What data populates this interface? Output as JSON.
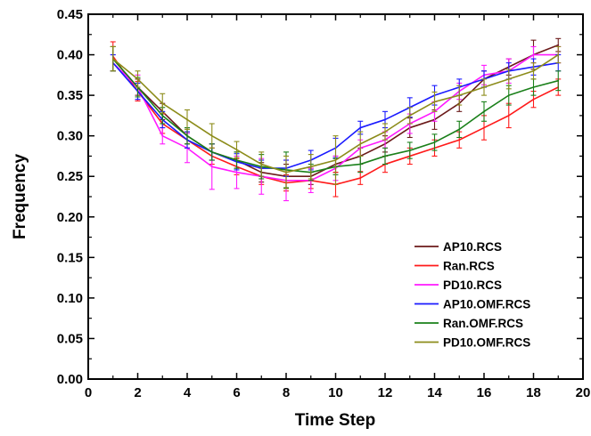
{
  "chart_data": {
    "type": "line",
    "title": "",
    "xlabel": "Time Step",
    "ylabel": "Frequency",
    "xlim": [
      0,
      20
    ],
    "ylim": [
      0.0,
      0.45
    ],
    "xticks": [
      "0",
      "2",
      "4",
      "6",
      "8",
      "10",
      "12",
      "14",
      "16",
      "18",
      "20"
    ],
    "yticks": [
      "0.00",
      "0.05",
      "0.10",
      "0.15",
      "0.20",
      "0.25",
      "0.30",
      "0.35",
      "0.40",
      "0.45"
    ],
    "grid": false,
    "legend_position": "bottom-right",
    "x": [
      1,
      2,
      3,
      4,
      5,
      6,
      7,
      8,
      9,
      10,
      11,
      12,
      13,
      14,
      15,
      16,
      17,
      18,
      19
    ],
    "series": [
      {
        "name": "AP10.RCS",
        "color": "#6b1a1a",
        "values": [
          0.395,
          0.36,
          0.33,
          0.3,
          0.28,
          0.27,
          0.255,
          0.25,
          0.25,
          0.265,
          0.275,
          0.29,
          0.31,
          0.32,
          0.34,
          0.37,
          0.385,
          0.4,
          0.412
        ],
        "errors": [
          0.015,
          0.01,
          0.01,
          0.01,
          0.01,
          0.01,
          0.012,
          0.015,
          0.01,
          0.01,
          0.01,
          0.01,
          0.012,
          0.012,
          0.01,
          0.01,
          0.01,
          0.018,
          0.008
        ]
      },
      {
        "name": "Ran.RCS",
        "color": "#ff1a1a",
        "values": [
          0.398,
          0.355,
          0.315,
          0.295,
          0.275,
          0.262,
          0.25,
          0.242,
          0.245,
          0.24,
          0.248,
          0.265,
          0.275,
          0.285,
          0.295,
          0.31,
          0.325,
          0.345,
          0.36
        ],
        "errors": [
          0.018,
          0.012,
          0.012,
          0.01,
          0.01,
          0.01,
          0.01,
          0.01,
          0.01,
          0.015,
          0.008,
          0.01,
          0.01,
          0.01,
          0.01,
          0.015,
          0.015,
          0.01,
          0.01
        ]
      },
      {
        "name": "PD10.RCS",
        "color": "#ff1aff",
        "values": [
          0.39,
          0.36,
          0.3,
          0.285,
          0.262,
          0.255,
          0.25,
          0.245,
          0.245,
          0.26,
          0.285,
          0.295,
          0.315,
          0.33,
          0.355,
          0.375,
          0.38,
          0.4,
          0.4
        ],
        "errors": [
          0.01,
          0.015,
          0.01,
          0.018,
          0.028,
          0.02,
          0.022,
          0.025,
          0.015,
          0.015,
          0.01,
          0.01,
          0.012,
          0.012,
          0.01,
          0.012,
          0.015,
          0.01,
          0.01
        ]
      },
      {
        "name": "AP10.OMF.RCS",
        "color": "#1a1aff",
        "values": [
          0.39,
          0.355,
          0.32,
          0.295,
          0.28,
          0.268,
          0.26,
          0.26,
          0.27,
          0.285,
          0.31,
          0.32,
          0.335,
          0.35,
          0.36,
          0.37,
          0.38,
          0.385,
          0.39
        ],
        "errors": [
          0.01,
          0.01,
          0.01,
          0.01,
          0.01,
          0.01,
          0.01,
          0.01,
          0.012,
          0.012,
          0.008,
          0.01,
          0.012,
          0.012,
          0.01,
          0.01,
          0.01,
          0.01,
          0.01
        ]
      },
      {
        "name": "Ran.OMF.RCS",
        "color": "#1a801a",
        "values": [
          0.395,
          0.36,
          0.325,
          0.3,
          0.28,
          0.27,
          0.262,
          0.258,
          0.255,
          0.262,
          0.265,
          0.275,
          0.282,
          0.292,
          0.308,
          0.33,
          0.35,
          0.36,
          0.368
        ],
        "errors": [
          0.015,
          0.012,
          0.01,
          0.01,
          0.01,
          0.01,
          0.015,
          0.022,
          0.01,
          0.01,
          0.01,
          0.01,
          0.01,
          0.01,
          0.01,
          0.012,
          0.012,
          0.01,
          0.012
        ]
      },
      {
        "name": "PD10.OMF.RCS",
        "color": "#8c8c1a",
        "values": [
          0.395,
          0.37,
          0.34,
          0.32,
          0.3,
          0.283,
          0.265,
          0.255,
          0.262,
          0.27,
          0.29,
          0.305,
          0.325,
          0.342,
          0.35,
          0.36,
          0.37,
          0.38,
          0.4
        ],
        "errors": [
          0.015,
          0.01,
          0.012,
          0.012,
          0.015,
          0.01,
          0.015,
          0.02,
          0.015,
          0.03,
          0.015,
          0.01,
          0.01,
          0.012,
          0.012,
          0.01,
          0.012,
          0.01,
          0.01
        ]
      }
    ]
  }
}
